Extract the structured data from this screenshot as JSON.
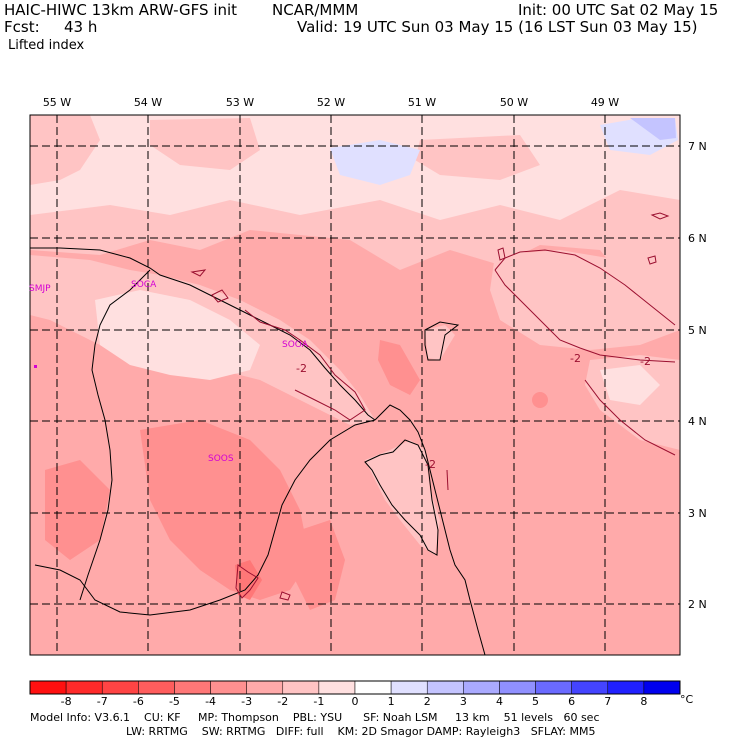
{
  "header": {
    "model": "HAIC-HIWC 13km ARW-GFS init",
    "center": "NCAR/MMM",
    "init": "Init: 00 UTC Sat 02 May 15",
    "fcst_label": "Fcst:",
    "fcst_value": "43 h",
    "valid": "Valid: 19 UTC Sun 03 May 15 (16 LST Sun 03 May 15)",
    "field": "Lifted index"
  },
  "longitude_labels": [
    "55 W",
    "54 W",
    "53 W",
    "52 W",
    "51 W",
    "50 W",
    "49 W"
  ],
  "latitude_labels": [
    "7 N",
    "6 N",
    "5 N",
    "4 N",
    "3 N",
    "2 N"
  ],
  "stations": [
    "SMJP",
    "SOCA",
    "SOOA",
    "SOOS"
  ],
  "contour_labels": [
    "-2",
    "-2",
    "-2",
    "-2"
  ],
  "colorbar": {
    "unit": "°C",
    "ticks": [
      "-8",
      "-7",
      "-6",
      "-5",
      "-4",
      "-3",
      "-2",
      "-1",
      "0",
      "1",
      "2",
      "3",
      "4",
      "5",
      "6",
      "7",
      "8"
    ],
    "colors": [
      "#ff1010",
      "#ff2a2a",
      "#ff4444",
      "#ff5d5d",
      "#ff7777",
      "#ff9090",
      "#ffaaaa",
      "#ffc4c4",
      "#ffe0e0",
      "#ffffff",
      "#e0e0ff",
      "#c4c4ff",
      "#aaaaff",
      "#9090ff",
      "#6a6aff",
      "#4444ff",
      "#2020ff",
      "#0000ee"
    ]
  },
  "footer": {
    "line1": "Model Info: V3.6.1    CU: KF     MP: Thompson    PBL: YSU      SF: Noah LSM     13 km    51 levels   60 sec",
    "line2": "LW: RRTMG    SW: RRTMG   DIFF: full    KM: 2D Smagor DAMP: Rayleigh3   SFLAY: MM5"
  },
  "map_colors": {
    "base": "#ffaaaa",
    "lighter": "#ffc4c4",
    "lightest": "#ffe0e0",
    "darker": "#ff9090",
    "positive": "#e0e0ff"
  }
}
